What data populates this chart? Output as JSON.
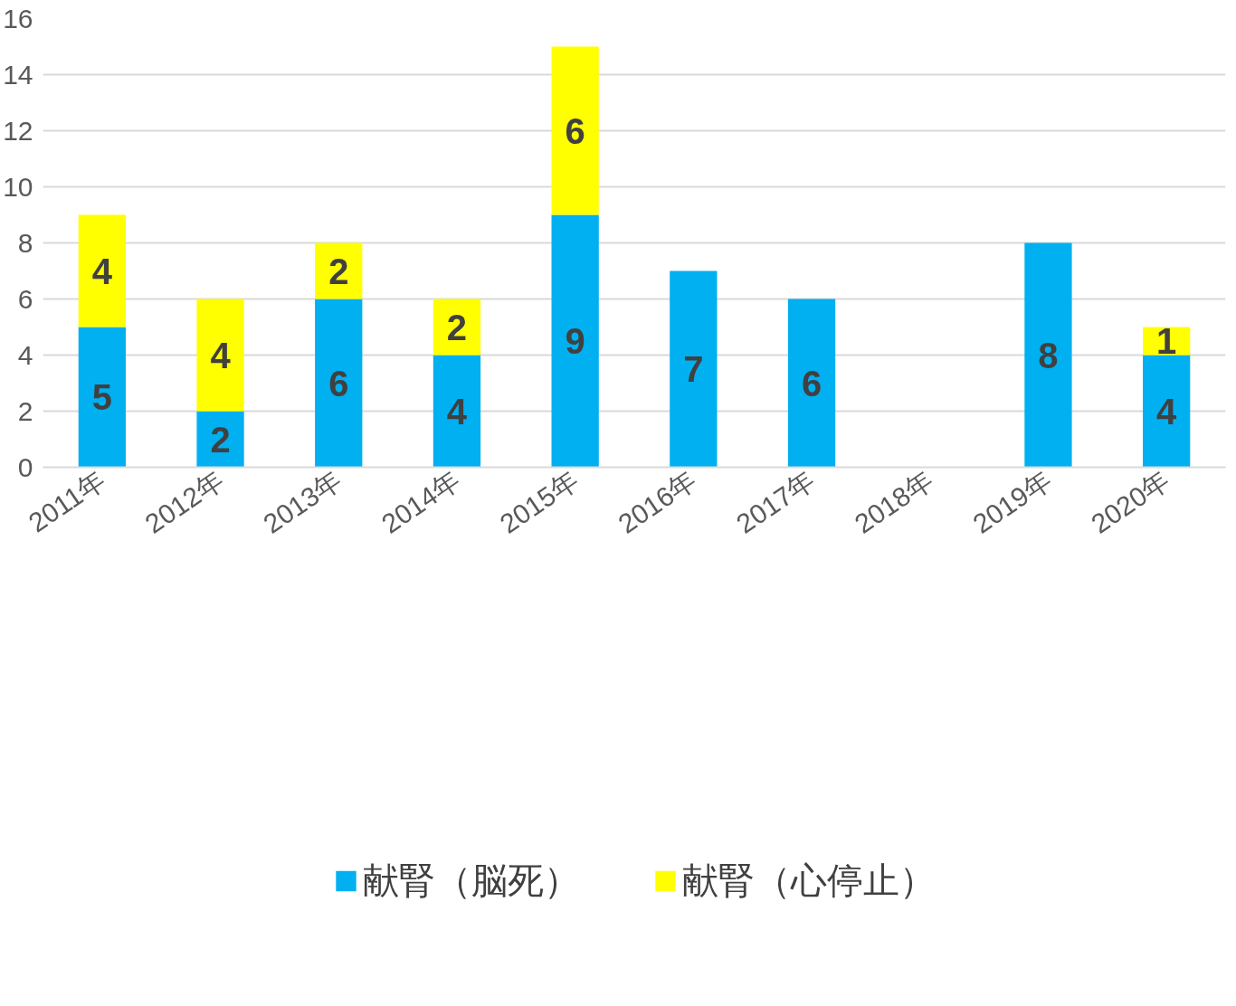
{
  "chart_data": {
    "type": "bar",
    "stacked": true,
    "categories": [
      "2011年",
      "2012年",
      "2013年",
      "2014年",
      "2015年",
      "2016年",
      "2017年",
      "2018年",
      "2019年",
      "2020年"
    ],
    "series": [
      {
        "name": "献腎（脳死）",
        "color": "#00b0f0",
        "values": [
          5,
          2,
          6,
          4,
          9,
          7,
          6,
          null,
          8,
          4
        ]
      },
      {
        "name": "献腎（心停止）",
        "color": "#ffff00",
        "values": [
          4,
          4,
          2,
          2,
          6,
          null,
          null,
          null,
          null,
          1
        ]
      }
    ],
    "ylim": [
      0,
      16
    ],
    "yticks": [
      0,
      2,
      4,
      6,
      8,
      10,
      12,
      14,
      16
    ],
    "grid": "y",
    "legend": "bottom",
    "data_labels": true
  }
}
